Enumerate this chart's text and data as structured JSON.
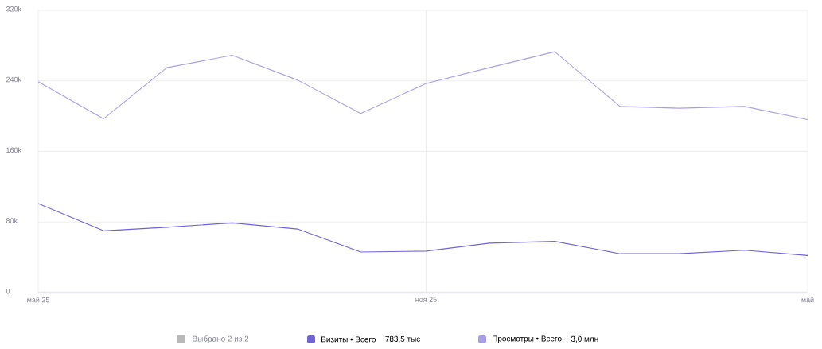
{
  "chart_data": {
    "type": "line",
    "x": [
      "2025-05",
      "2025-06",
      "2025-07",
      "2025-08",
      "2025-09",
      "2025-10",
      "2025-11",
      "2025-12",
      "2026-01",
      "2026-02",
      "2026-03",
      "2026-04",
      "2026-05"
    ],
    "series": [
      {
        "name": "Визиты • Всего",
        "color": "#6f63d8",
        "values": [
          101000,
          70000,
          74000,
          79000,
          72000,
          46000,
          47000,
          56000,
          58000,
          44000,
          44000,
          48000,
          42000
        ]
      },
      {
        "name": "Просмотры • Всего",
        "color": "#a99fe6",
        "values": [
          239000,
          197000,
          255000,
          269000,
          241000,
          203000,
          237000,
          255000,
          273000,
          211000,
          209000,
          211000,
          196000
        ]
      }
    ],
    "xlim": [
      "2025-05",
      "2026-05"
    ],
    "xticks": [
      {
        "value": "2025-05",
        "label": "май 25"
      },
      {
        "value": "2025-11",
        "label": "ноя 25"
      },
      {
        "value": "2026-05",
        "label": "май"
      }
    ],
    "ylim": [
      0,
      320000
    ],
    "yticks": [
      {
        "value": 0,
        "label": "0"
      },
      {
        "value": 80000,
        "label": "80k"
      },
      {
        "value": 160000,
        "label": "160k"
      },
      {
        "value": 240000,
        "label": "240k"
      },
      {
        "value": 320000,
        "label": "320k"
      }
    ],
    "grid": true,
    "legend": "bottom",
    "marker": "none",
    "line_style": "solid",
    "annotations": [
      "Выбрано 2 из 2",
      "783,5 тыс",
      "3,0 млн"
    ]
  }
}
